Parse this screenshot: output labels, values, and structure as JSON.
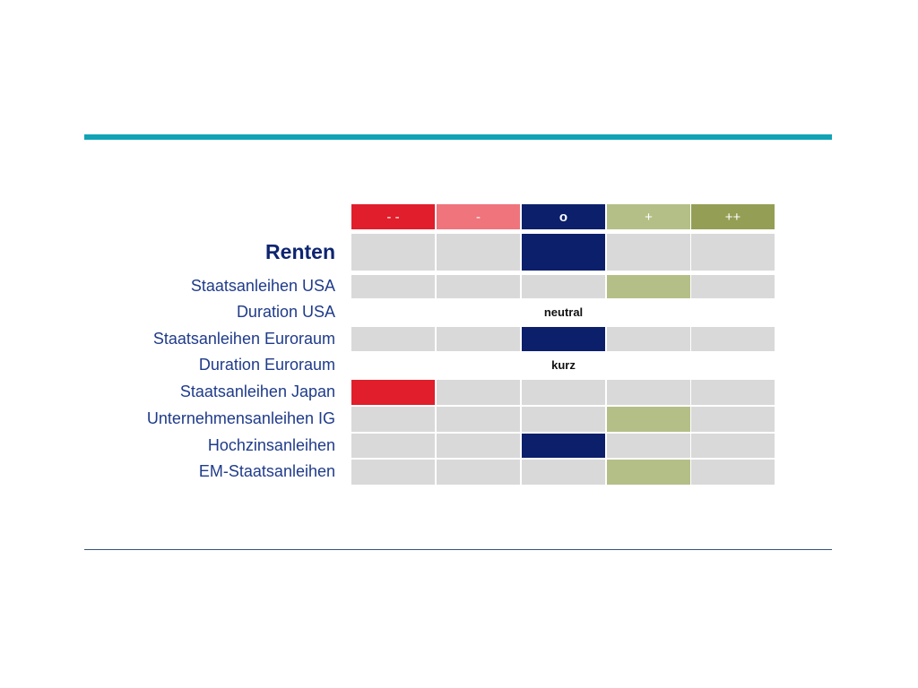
{
  "scale": {
    "labels": [
      "- -",
      "-",
      "o",
      "+",
      "++"
    ],
    "colors": [
      "#e01e2c",
      "#ef747c",
      "#0b1f6b",
      "#b4bf87",
      "#959e55"
    ]
  },
  "rows": [
    {
      "label": "Renten",
      "section": true,
      "position": 2
    },
    {
      "label": "Staatsanleihen USA",
      "section": false,
      "position": 3
    },
    {
      "label": "Duration USA",
      "section": false,
      "note": "neutral"
    },
    {
      "label": "Staatsanleihen Euroraum",
      "section": false,
      "position": 2
    },
    {
      "label": "Duration Euroraum",
      "section": false,
      "note": "kurz"
    },
    {
      "label": "Staatsanleihen Japan",
      "section": false,
      "position": 0
    },
    {
      "label": "Unternehmensanleihen IG",
      "section": false,
      "position": 3
    },
    {
      "label": "Hochzinsanleihen",
      "section": false,
      "position": 2
    },
    {
      "label": "EM-Staatsanleihen",
      "section": false,
      "position": 3
    }
  ]
}
